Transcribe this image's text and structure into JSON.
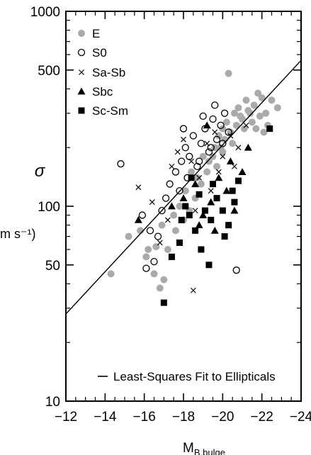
{
  "chart_data": {
    "type": "scatter",
    "title": "",
    "xlabel_main": "M",
    "xlabel_sub": "B,bulge",
    "ylabel_symbol": "σ",
    "ylabel_units": "m s⁻¹)",
    "x_range": [
      -12,
      -24
    ],
    "x_ticks": [
      -12,
      -14,
      -16,
      -18,
      -20,
      -22,
      -24
    ],
    "x_tick_labels": [
      "−12",
      "−14",
      "−16",
      "−18",
      "−20",
      "−22",
      "−24"
    ],
    "y_scale": "log",
    "y_range": [
      10,
      1000
    ],
    "y_ticks": [
      10,
      50,
      100,
      500,
      1000
    ],
    "y_tick_labels": [
      "10",
      "50",
      "100",
      "500",
      "1000"
    ],
    "legend_position": "top-left",
    "fit_label": "Least-Squares Fit to Ellipticals",
    "fit_line": {
      "x": [
        -12,
        -24
      ],
      "y": [
        28,
        560
      ]
    },
    "colors": {
      "E": "#aaaaaa",
      "S0": "#000000",
      "Sa-Sb": "#000000",
      "Sbc": "#000000",
      "Sc-Sm": "#000000"
    },
    "series": [
      {
        "name": "E",
        "marker": "filled-circle-gray",
        "points": [
          [
            -14.3,
            45
          ],
          [
            -15.2,
            70
          ],
          [
            -15.8,
            75
          ],
          [
            -16.2,
            60
          ],
          [
            -16.1,
            55
          ],
          [
            -16.5,
            45
          ],
          [
            -16.8,
            38
          ],
          [
            -17.0,
            42
          ],
          [
            -17.2,
            60
          ],
          [
            -16.9,
            80
          ],
          [
            -17.5,
            90
          ],
          [
            -17.8,
            100
          ],
          [
            -18.1,
            120
          ],
          [
            -18.4,
            150
          ],
          [
            -18.7,
            140
          ],
          [
            -19.0,
            180
          ],
          [
            -19.3,
            170
          ],
          [
            -19.6,
            200
          ],
          [
            -19.8,
            230
          ],
          [
            -20.0,
            250
          ],
          [
            -20.2,
            270
          ],
          [
            -20.4,
            240
          ],
          [
            -20.6,
            300
          ],
          [
            -20.8,
            320
          ],
          [
            -21.0,
            280
          ],
          [
            -21.2,
            350
          ],
          [
            -21.4,
            300
          ],
          [
            -21.6,
            330
          ],
          [
            -21.8,
            380
          ],
          [
            -22.0,
            360
          ],
          [
            -22.2,
            300
          ],
          [
            -22.5,
            350
          ],
          [
            -22.8,
            320
          ],
          [
            -20.3,
            480
          ],
          [
            -19.9,
            200
          ],
          [
            -19.5,
            180
          ],
          [
            -19.2,
            150
          ],
          [
            -18.9,
            130
          ],
          [
            -18.6,
            110
          ],
          [
            -18.3,
            95
          ],
          [
            -20.7,
            260
          ],
          [
            -21.1,
            250
          ],
          [
            -21.5,
            270
          ],
          [
            -21.9,
            290
          ],
          [
            -22.3,
            260
          ],
          [
            -20.1,
            220
          ],
          [
            -20.5,
            210
          ],
          [
            -19.7,
            160
          ],
          [
            -18.0,
            85
          ],
          [
            -17.6,
            75
          ],
          [
            -16.6,
            62
          ],
          [
            -20.9,
            290
          ],
          [
            -21.3,
            310
          ],
          [
            -21.7,
            250
          ],
          [
            -22.1,
            240
          ],
          [
            -20.0,
            190
          ]
        ]
      },
      {
        "name": "S0",
        "marker": "open-circle",
        "points": [
          [
            -14.8,
            165
          ],
          [
            -15.9,
            90
          ],
          [
            -16.3,
            75
          ],
          [
            -16.1,
            48
          ],
          [
            -16.5,
            52
          ],
          [
            -16.9,
            95
          ],
          [
            -17.3,
            130
          ],
          [
            -17.6,
            150
          ],
          [
            -17.9,
            170
          ],
          [
            -18.1,
            200
          ],
          [
            -18.3,
            180
          ],
          [
            -18.5,
            230
          ],
          [
            -18.7,
            160
          ],
          [
            -18.9,
            210
          ],
          [
            -19.1,
            250
          ],
          [
            -19.3,
            190
          ],
          [
            -19.5,
            280
          ],
          [
            -19.7,
            220
          ],
          [
            -19.9,
            260
          ],
          [
            -20.1,
            300
          ],
          [
            -20.3,
            240
          ],
          [
            -20.7,
            47
          ],
          [
            -17.8,
            120
          ],
          [
            -18.2,
            140
          ],
          [
            -18.8,
            170
          ],
          [
            -19.4,
            200
          ],
          [
            -16.7,
            70
          ],
          [
            -17.1,
            110
          ],
          [
            -18.0,
            250
          ],
          [
            -19.0,
            290
          ],
          [
            -19.6,
            330
          ],
          [
            -20.0,
            210
          ]
        ]
      },
      {
        "name": "Sa-Sb",
        "marker": "x",
        "points": [
          [
            -15.7,
            125
          ],
          [
            -16.4,
            105
          ],
          [
            -17.4,
            160
          ],
          [
            -17.7,
            190
          ],
          [
            -18.0,
            220
          ],
          [
            -18.4,
            170
          ],
          [
            -18.8,
            140
          ],
          [
            -19.2,
            210
          ],
          [
            -19.6,
            240
          ],
          [
            -20.0,
            180
          ],
          [
            -20.4,
            230
          ],
          [
            -20.8,
            200
          ],
          [
            -21.2,
            260
          ],
          [
            -18.5,
            37
          ],
          [
            -16.8,
            65
          ],
          [
            -17.2,
            85
          ],
          [
            -18.6,
            95
          ],
          [
            -19.4,
            120
          ],
          [
            -19.8,
            150
          ],
          [
            -20.6,
            160
          ]
        ]
      },
      {
        "name": "Sbc",
        "marker": "filled-triangle",
        "points": [
          [
            -15.7,
            85
          ],
          [
            -17.4,
            100
          ],
          [
            -18.0,
            110
          ],
          [
            -18.6,
            130
          ],
          [
            -19.0,
            90
          ],
          [
            -19.4,
            105
          ],
          [
            -19.8,
            140
          ],
          [
            -20.2,
            120
          ],
          [
            -20.6,
            95
          ],
          [
            -21.0,
            150
          ],
          [
            -19.6,
            75
          ],
          [
            -18.8,
            80
          ],
          [
            -20.4,
            170
          ],
          [
            -21.3,
            200
          ],
          [
            -19.2,
            260
          ]
        ]
      },
      {
        "name": "Sc-Sm",
        "marker": "filled-square",
        "points": [
          [
            -17.0,
            32
          ],
          [
            -17.4,
            55
          ],
          [
            -17.8,
            65
          ],
          [
            -18.1,
            100
          ],
          [
            -18.3,
            90
          ],
          [
            -18.6,
            75
          ],
          [
            -18.9,
            60
          ],
          [
            -19.1,
            95
          ],
          [
            -19.4,
            85
          ],
          [
            -19.7,
            110
          ],
          [
            -20.0,
            95
          ],
          [
            -20.3,
            80
          ],
          [
            -20.6,
            105
          ],
          [
            -19.3,
            50
          ],
          [
            -18.8,
            115
          ],
          [
            -20.8,
            135
          ],
          [
            -22.4,
            250
          ],
          [
            -20.1,
            70
          ],
          [
            -19.5,
            130
          ],
          [
            -18.4,
            140
          ],
          [
            -17.9,
            85
          ],
          [
            -20.5,
            120
          ]
        ]
      }
    ]
  }
}
